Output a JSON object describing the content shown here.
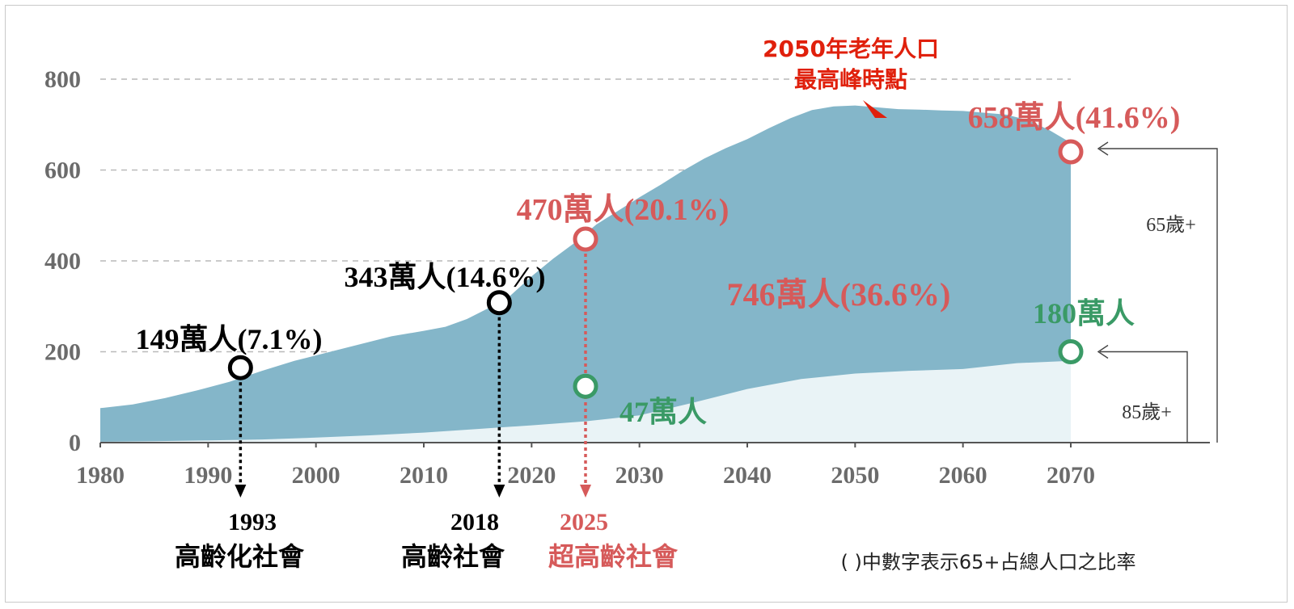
{
  "chart_data": {
    "type": "area",
    "x_ticks": [
      1980,
      1990,
      2000,
      2010,
      2020,
      2030,
      2040,
      2050,
      2060,
      2070
    ],
    "y_ticks": [
      0,
      200,
      400,
      600,
      800
    ],
    "xlim": [
      1980,
      2070
    ],
    "ylim": [
      0,
      800
    ],
    "grid": "horizontal dashed",
    "colors": {
      "area_65": "#84b6c9",
      "area_85": "#e9f3f6",
      "red": "#d65a5a",
      "green": "#3a9a66",
      "black": "#000000",
      "peak": "#e0200c"
    },
    "series": [
      {
        "name": "65歲+",
        "x": [
          1980,
          1983,
          1986,
          1989,
          1992,
          1995,
          1998,
          2001,
          2004,
          2007,
          2010,
          2012,
          2014,
          2016,
          2018,
          2020,
          2022,
          2024,
          2026,
          2028,
          2030,
          2032,
          2034,
          2036,
          2038,
          2040,
          2042,
          2044,
          2046,
          2048,
          2050,
          2052,
          2054,
          2056,
          2058,
          2060,
          2062,
          2064,
          2066,
          2068,
          2070
        ],
        "values": [
          76,
          84,
          98,
          115,
          134,
          158,
          180,
          198,
          216,
          234,
          246,
          255,
          272,
          296,
          323,
          366,
          405,
          440,
          480,
          510,
          540,
          568,
          598,
          625,
          648,
          668,
          692,
          714,
          732,
          740,
          742,
          738,
          734,
          733,
          731,
          730,
          726,
          722,
          710,
          688,
          660
        ]
      },
      {
        "name": "85歲+",
        "x": [
          1980,
          1985,
          1990,
          1995,
          2000,
          2005,
          2010,
          2015,
          2020,
          2025,
          2030,
          2035,
          2040,
          2045,
          2050,
          2055,
          2060,
          2065,
          2070
        ],
        "values": [
          2,
          3,
          5,
          7,
          11,
          16,
          22,
          30,
          38,
          47,
          60,
          88,
          118,
          140,
          152,
          158,
          162,
          175,
          180
        ]
      }
    ],
    "markers": [
      {
        "year": 1993,
        "value": 165,
        "color": "black",
        "label": "149萬人(7.1%)",
        "arrow_year": "1993",
        "arrow_label": "高齡化社會"
      },
      {
        "year": 2017,
        "value": 308,
        "color": "black",
        "label": "343萬人(14.6%)",
        "arrow_year": "2018",
        "arrow_label": "高齡社會"
      },
      {
        "year": 2025,
        "value": 448,
        "color": "red",
        "label": "470萬人(20.1%)",
        "arrow_year": "2025",
        "arrow_label": "超高齡社會"
      },
      {
        "year": 2025,
        "value": 124,
        "color": "green",
        "label": "47萬人"
      },
      {
        "year": 2070,
        "value": 640,
        "color": "red",
        "label": "658萬人(41.6%)"
      },
      {
        "year": 2070,
        "value": 200,
        "color": "green",
        "label": "180萬人"
      }
    ],
    "peak": {
      "year": 2050,
      "value": 735,
      "label_line1": "2050年老年人口",
      "label_line2": "最高峰時點"
    },
    "annotations": {
      "center_label": "746萬人(36.6%)",
      "bracket_65": "65歲+",
      "bracket_85": "85歲+",
      "footnote": "( )中數字表示65+占總人口之比率"
    }
  }
}
